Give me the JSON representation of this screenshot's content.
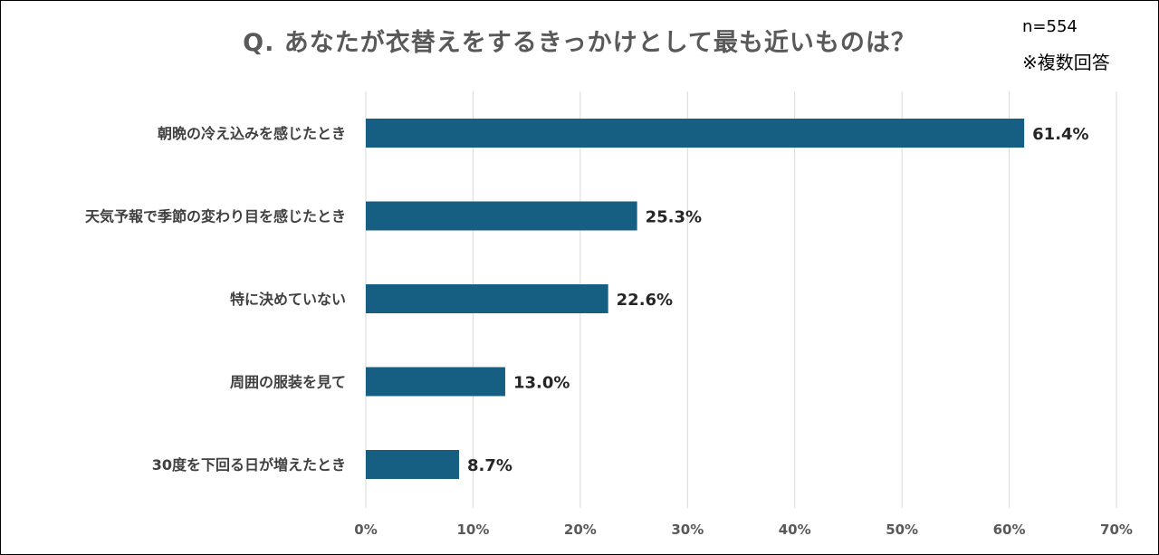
{
  "colors": {
    "bar": "#175e83",
    "grid": "#d9d9d9",
    "category_text": "#404040",
    "tick_text": "#595959",
    "label_text": "#262626"
  },
  "chart_data": {
    "type": "bar",
    "orientation": "horizontal",
    "title": "Q. あなたが衣替えをするきっかけとして最も近いものは？",
    "sample_size": "n=554",
    "note": "※複数回答",
    "xlabel": "",
    "ylabel": "",
    "categories": [
      "朝晩の冷え込みを感じたとき",
      "天気予報で季節の変わり目を感じたとき",
      "特に決めていない",
      "周囲の服装を見て",
      "30度を下回る日が増えたとき"
    ],
    "values": [
      61.4,
      25.3,
      22.6,
      13.0,
      8.7
    ],
    "value_labels": [
      "61.4%",
      "25.3%",
      "22.6%",
      "13.0%",
      "8.7%"
    ],
    "xlim": [
      0,
      70
    ],
    "xticks": [
      0,
      10,
      20,
      30,
      40,
      50,
      60,
      70
    ],
    "xtick_labels": [
      "0%",
      "10%",
      "20%",
      "30%",
      "40%",
      "50%",
      "60%",
      "70%"
    ],
    "grid": "vertical",
    "legend": "none"
  }
}
